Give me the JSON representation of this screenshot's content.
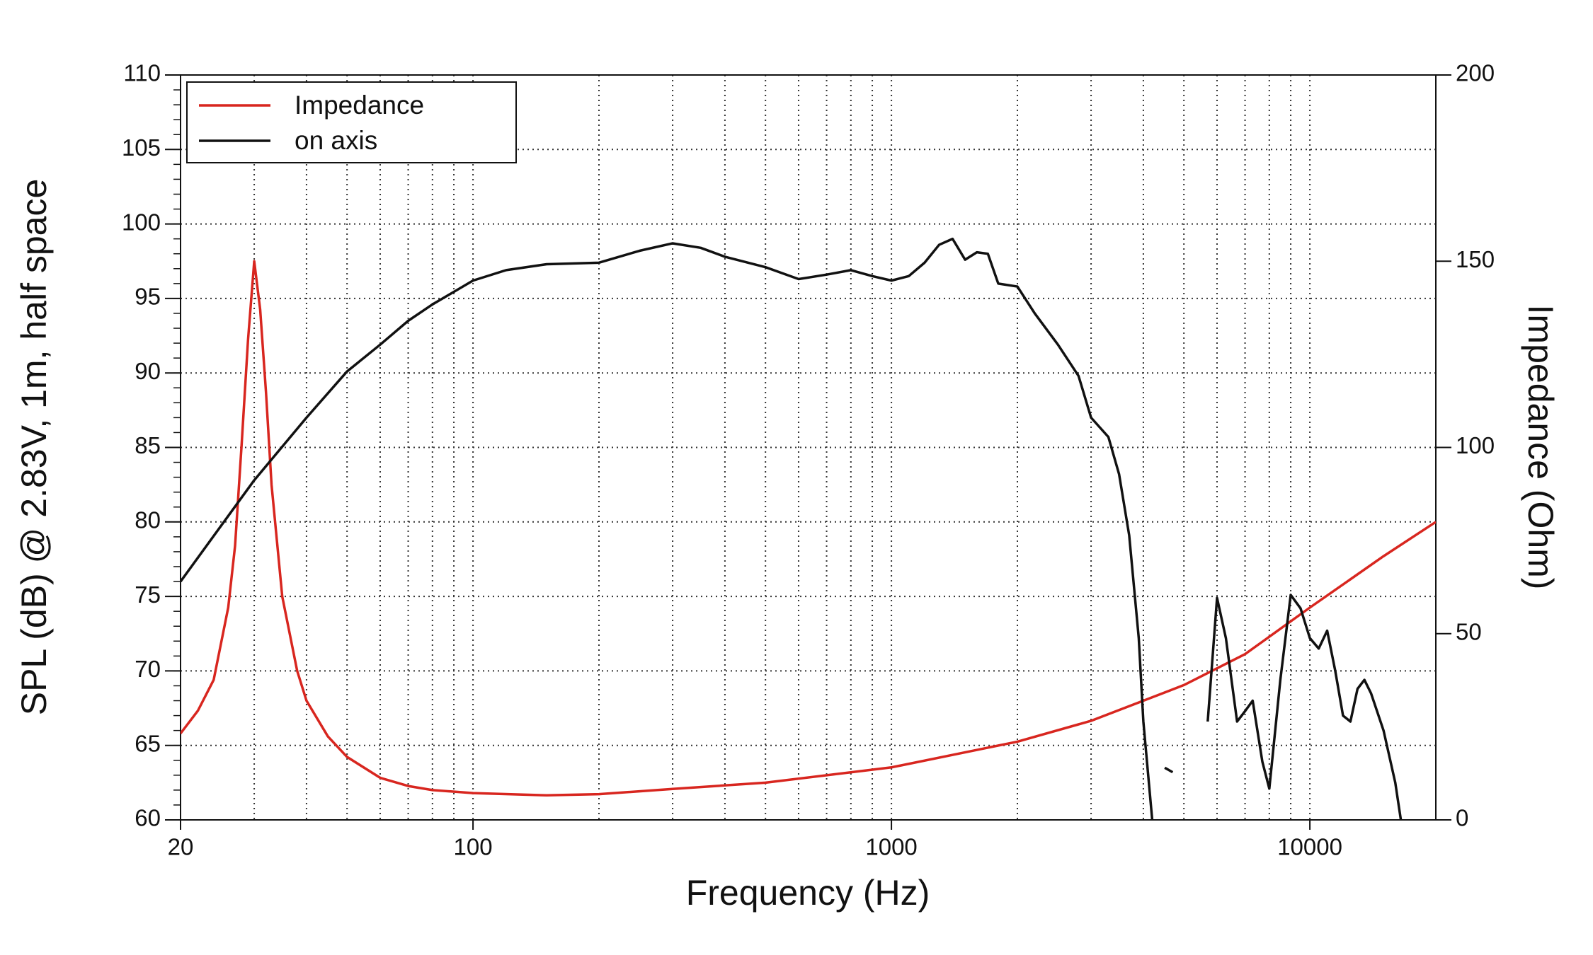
{
  "chart_data": {
    "type": "line",
    "xlabel": "Frequency (Hz)",
    "ylabel": "SPL (dB) @ 2.83V, 1m, half space",
    "y2label": "Impedance (Ohm)",
    "xscale": "log",
    "xlim": [
      20,
      20000
    ],
    "xticks": [
      20,
      100,
      1000,
      10000
    ],
    "ylim": [
      60,
      110
    ],
    "yticks": [
      60,
      65,
      70,
      75,
      80,
      85,
      90,
      95,
      100,
      105,
      110
    ],
    "y2lim": [
      0,
      200
    ],
    "y2ticks": [
      0,
      50,
      100,
      150,
      200
    ],
    "grid": true,
    "legend": "upper left",
    "series": [
      {
        "name": "Impedance",
        "color": "#d8261f",
        "axis": "y2",
        "x": [
          20,
          22,
          24,
          26,
          27,
          28,
          29,
          30,
          31,
          32,
          33,
          35,
          38,
          40,
          45,
          50,
          60,
          70,
          80,
          100,
          150,
          200,
          300,
          500,
          1000,
          2000,
          3000,
          5000,
          7000,
          10000,
          15000,
          20000
        ],
        "values": [
          23.2,
          29.3,
          37.6,
          57,
          73.6,
          101,
          129,
          150,
          137,
          115,
          90,
          60,
          40,
          32,
          22.4,
          16.9,
          11.3,
          9.1,
          8.0,
          7.2,
          6.6,
          6.9,
          8.3,
          10.0,
          14.1,
          21.0,
          26.6,
          36.2,
          44.5,
          57.0,
          70.8,
          80
        ]
      },
      {
        "name": "on axis",
        "color": "#111111",
        "x": [
          20,
          30,
          40,
          50,
          60,
          70,
          80,
          100,
          120,
          150,
          200,
          250,
          300,
          350,
          400,
          500,
          600,
          700,
          800,
          900,
          1000,
          1100,
          1200,
          1300,
          1400,
          1500,
          1600,
          1700,
          1800,
          2000,
          2200,
          2500,
          2800,
          3000,
          3300,
          3500,
          3700,
          3900,
          4000,
          4200,
          4300,
          4500,
          4700,
          4900,
          5500,
          5700,
          6000,
          6300,
          6700,
          7000,
          7300,
          7700,
          8000,
          8500,
          9000,
          9500,
          10000,
          10500,
          11000,
          11500,
          12000,
          12500,
          13000,
          13500,
          14000,
          15000,
          16000,
          16500
        ],
        "values": [
          76.0,
          82.8,
          87.0,
          90.1,
          91.9,
          93.5,
          94.6,
          96.2,
          96.9,
          97.3,
          97.4,
          98.2,
          98.7,
          98.4,
          97.8,
          97.1,
          96.3,
          96.6,
          96.9,
          96.5,
          96.2,
          96.5,
          97.4,
          98.6,
          99.0,
          97.6,
          98.1,
          98.0,
          96.0,
          95.8,
          94.0,
          91.9,
          89.8,
          87.0,
          85.7,
          83.2,
          79.1,
          72.2,
          66.6,
          60,
          null,
          63.5,
          63.2,
          null,
          null,
          66.6,
          74.9,
          72.2,
          66.6,
          67.3,
          68.0,
          63.9,
          62.1,
          69.4,
          75.1,
          74.2,
          72.2,
          71.5,
          72.7,
          70.0,
          67.0,
          66.6,
          68.8,
          69.4,
          68.5,
          66.0,
          62.5,
          60.0
        ]
      }
    ]
  }
}
